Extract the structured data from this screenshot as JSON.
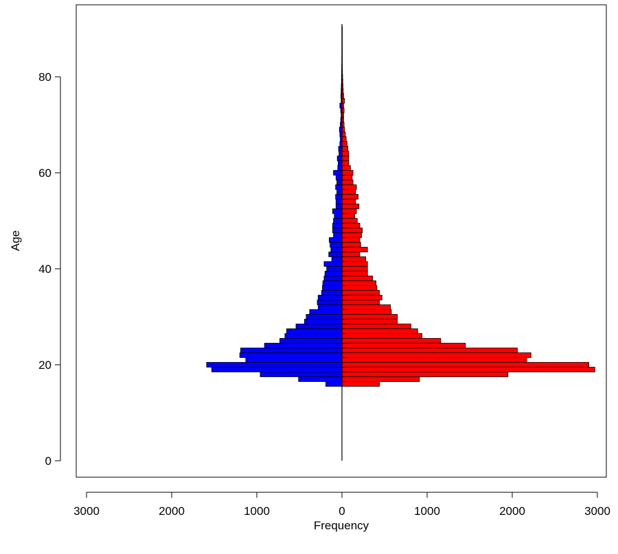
{
  "chart_data": {
    "type": "bar",
    "orientation": "horizontal",
    "subtype": "population-pyramid",
    "xlabel": "Frequency",
    "ylabel": "Age",
    "xlim": [
      -3000,
      3000
    ],
    "ylim": [
      0,
      91
    ],
    "x_ticks": [
      -3000,
      -2000,
      -1000,
      0,
      1000,
      2000,
      3000
    ],
    "x_tick_labels": [
      "3000",
      "2000",
      "1000",
      "0",
      "1000",
      "2000",
      "3000"
    ],
    "y_ticks": [
      0,
      20,
      40,
      60,
      80
    ],
    "y_tick_labels": [
      "0",
      "20",
      "40",
      "60",
      "80"
    ],
    "grid": false,
    "legend": "none",
    "colors": {
      "left": "#0000ff",
      "right": "#ff0000",
      "edge": "#000000"
    },
    "ages": [
      16,
      17,
      18,
      19,
      20,
      21,
      22,
      23,
      24,
      25,
      26,
      27,
      28,
      29,
      30,
      31,
      32,
      33,
      34,
      35,
      36,
      37,
      38,
      39,
      40,
      41,
      42,
      43,
      44,
      45,
      46,
      47,
      48,
      49,
      50,
      51,
      52,
      53,
      54,
      55,
      56,
      57,
      58,
      59,
      60,
      61,
      62,
      63,
      64,
      65,
      66,
      67,
      68,
      69,
      70,
      71,
      72,
      73,
      74,
      75,
      76,
      77,
      78,
      79,
      80,
      81,
      82,
      83,
      84,
      85,
      86,
      87,
      88,
      89,
      90
    ],
    "series": [
      {
        "side": "left",
        "color": "#0000ff",
        "values": [
          190,
          510,
          960,
          1530,
          1590,
          1130,
          1200,
          1190,
          910,
          730,
          670,
          650,
          540,
          440,
          420,
          380,
          280,
          290,
          280,
          240,
          230,
          225,
          210,
          200,
          180,
          210,
          120,
          155,
          130,
          140,
          150,
          100,
          110,
          110,
          100,
          90,
          110,
          70,
          70,
          75,
          60,
          75,
          60,
          70,
          100,
          50,
          45,
          55,
          35,
          40,
          25,
          20,
          25,
          30,
          20,
          15,
          10,
          15,
          25,
          10,
          12,
          10,
          8,
          6,
          5,
          4,
          3,
          2,
          2,
          1,
          1,
          1,
          1,
          1,
          1
        ]
      },
      {
        "side": "right",
        "color": "#ff0000",
        "values": [
          440,
          910,
          1950,
          2970,
          2900,
          2170,
          2220,
          2060,
          1450,
          1160,
          940,
          890,
          810,
          650,
          650,
          580,
          570,
          440,
          470,
          440,
          410,
          400,
          360,
          300,
          300,
          300,
          280,
          210,
          300,
          220,
          210,
          230,
          240,
          210,
          180,
          150,
          170,
          200,
          160,
          190,
          160,
          170,
          130,
          120,
          130,
          100,
          80,
          80,
          80,
          70,
          60,
          50,
          40,
          30,
          25,
          20,
          20,
          25,
          20,
          30,
          20,
          15,
          12,
          10,
          8,
          6,
          5,
          4,
          3,
          2,
          2,
          1,
          1,
          1,
          1
        ]
      }
    ],
    "spine_min_age": 0,
    "spine_max_age": 91
  }
}
